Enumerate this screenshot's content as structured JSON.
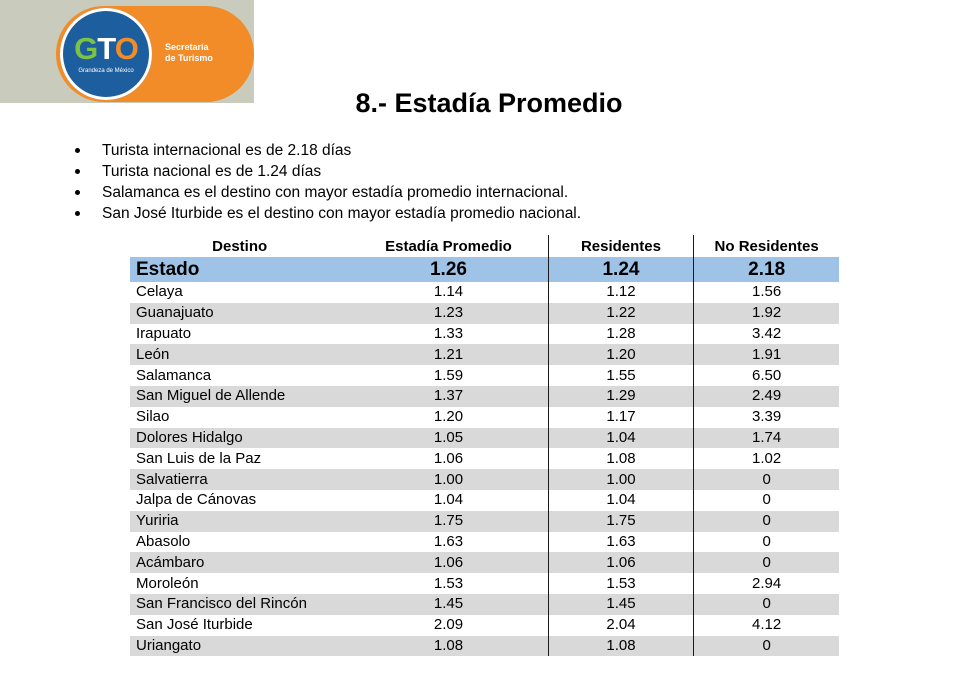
{
  "logo": {
    "mark_parts": [
      "G",
      "T",
      "O"
    ],
    "tagline": "Grandeza de México",
    "org_lines": [
      "Secretaría",
      "de Turismo"
    ],
    "colors": {
      "band": "#c9ccbd",
      "pill": "#f28c28",
      "circle": "#1d5f9e",
      "green": "#7cc243"
    }
  },
  "title": "8.- Estadía Promedio",
  "bullets": [
    "Turista internacional es de 2.18 días",
    "Turista nacional es de 1.24 días",
    "Salamanca es el destino con mayor estadía promedio internacional.",
    "San José Iturbide es el destino con mayor estadía promedio nacional."
  ],
  "table": {
    "headers": [
      "Destino",
      "Estadía Promedio",
      "Residentes",
      "No Residentes"
    ],
    "total": [
      "Estado",
      "1.26",
      "1.24",
      "2.18"
    ],
    "rows": [
      [
        "Celaya",
        "1.14",
        "1.12",
        "1.56"
      ],
      [
        "Guanajuato",
        "1.23",
        "1.22",
        "1.92"
      ],
      [
        "Irapuato",
        "1.33",
        "1.28",
        "3.42"
      ],
      [
        "León",
        "1.21",
        "1.20",
        "1.91"
      ],
      [
        "Salamanca",
        "1.59",
        "1.55",
        "6.50"
      ],
      [
        "San Miguel de Allende",
        "1.37",
        "1.29",
        "2.49"
      ],
      [
        "Silao",
        "1.20",
        "1.17",
        "3.39"
      ],
      [
        "Dolores Hidalgo",
        "1.05",
        "1.04",
        "1.74"
      ],
      [
        "San Luis de la Paz",
        "1.06",
        "1.08",
        "1.02"
      ],
      [
        "Salvatierra",
        "1.00",
        "1.00",
        "0"
      ],
      [
        "Jalpa de Cánovas",
        "1.04",
        "1.04",
        "0"
      ],
      [
        "Yuriria",
        "1.75",
        "1.75",
        "0"
      ],
      [
        "Abasolo",
        "1.63",
        "1.63",
        "0"
      ],
      [
        "Acámbaro",
        "1.06",
        "1.06",
        "0"
      ],
      [
        "Moroleón",
        "1.53",
        "1.53",
        "2.94"
      ],
      [
        "San Francisco del Rincón",
        "1.45",
        "1.45",
        "0"
      ],
      [
        "San José Iturbide",
        "2.09",
        "2.04",
        "4.12"
      ],
      [
        "Uriangato",
        "1.08",
        "1.08",
        "0"
      ]
    ],
    "colors": {
      "total_row": "#9fc3e6",
      "stripe": "#d9d9d9"
    }
  }
}
